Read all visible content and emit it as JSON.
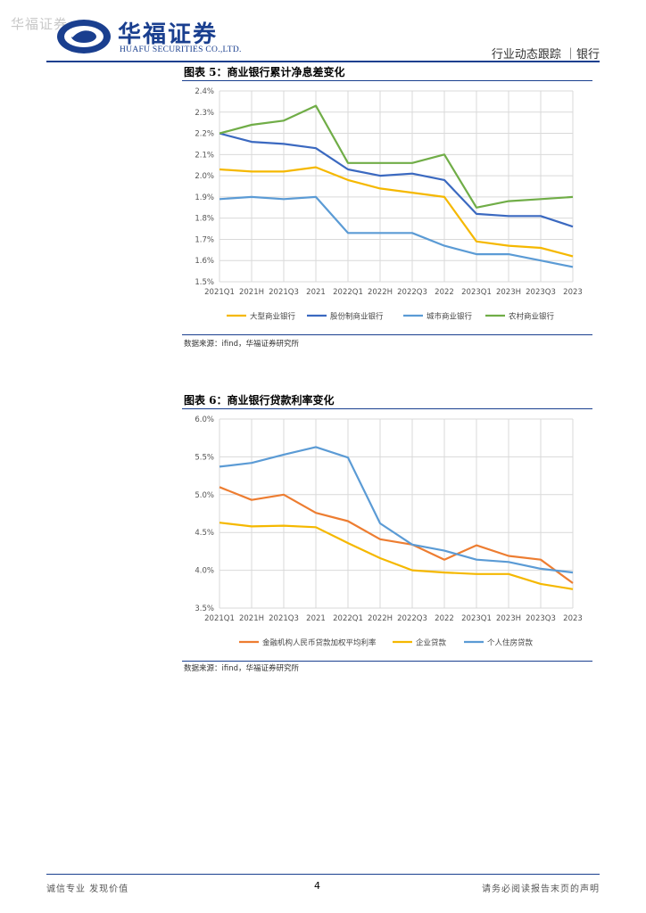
{
  "header": {
    "watermark": "华福证券",
    "logo_cn": "华福证券",
    "logo_en": "HUAFU SECURITIES CO.,LTD.",
    "section": "行业动态跟踪 ｜银行"
  },
  "figures": [
    {
      "title": "图表 5：商业银行累计净息差变化",
      "source": "数据来源：ifind，华福证券研究所"
    },
    {
      "title": "图表 6：商业银行贷款利率变化",
      "source": "数据来源：ifind，华福证券研究所"
    }
  ],
  "chart_data": [
    {
      "type": "line",
      "title": "商业银行累计净息差变化",
      "categories": [
        "2021Q1",
        "2021H",
        "2021Q3",
        "2021",
        "2022Q1",
        "2022H",
        "2022Q3",
        "2022",
        "2023Q1",
        "2023H",
        "2023Q3",
        "2023"
      ],
      "y_ticks": [
        "1.5%",
        "1.6%",
        "1.7%",
        "1.8%",
        "1.9%",
        "2.0%",
        "2.1%",
        "2.2%",
        "2.3%",
        "2.4%"
      ],
      "ylim": [
        1.5,
        2.4
      ],
      "legend_position": "bottom",
      "series": [
        {
          "name": "大型商业银行",
          "color": "#f5b800",
          "values": [
            2.03,
            2.02,
            2.02,
            2.04,
            1.98,
            1.94,
            1.92,
            1.9,
            1.69,
            1.67,
            1.66,
            1.62
          ]
        },
        {
          "name": "股份制商业银行",
          "color": "#3b69c0",
          "values": [
            2.2,
            2.16,
            2.15,
            2.13,
            2.03,
            2.0,
            2.01,
            1.98,
            1.82,
            1.81,
            1.81,
            1.76
          ]
        },
        {
          "name": "城市商业银行",
          "color": "#5b9bd5",
          "values": [
            1.89,
            1.9,
            1.89,
            1.9,
            1.73,
            1.73,
            1.73,
            1.67,
            1.63,
            1.63,
            1.6,
            1.57
          ]
        },
        {
          "name": "农村商业银行",
          "color": "#70ad47",
          "values": [
            2.2,
            2.24,
            2.26,
            2.33,
            2.06,
            2.06,
            2.06,
            2.1,
            1.85,
            1.88,
            1.89,
            1.9
          ]
        }
      ]
    },
    {
      "type": "line",
      "title": "商业银行贷款利率变化",
      "categories": [
        "2021Q1",
        "2021H",
        "2021Q3",
        "2021",
        "2022Q1",
        "2022H",
        "2022Q3",
        "2022",
        "2023Q1",
        "2023H",
        "2023Q3",
        "2023"
      ],
      "y_ticks": [
        "3.5%",
        "4.0%",
        "4.5%",
        "5.0%",
        "5.5%",
        "6.0%"
      ],
      "ylim": [
        3.5,
        6.0
      ],
      "legend_position": "bottom",
      "series": [
        {
          "name": "金融机构人民币贷款加权平均利率",
          "color": "#ed7d31",
          "values": [
            5.1,
            4.93,
            5.0,
            4.76,
            4.65,
            4.41,
            4.34,
            4.14,
            4.33,
            4.19,
            4.14,
            3.83
          ]
        },
        {
          "name": "企业贷款",
          "color": "#f5b800",
          "values": [
            4.63,
            4.58,
            4.59,
            4.57,
            4.36,
            4.16,
            4.0,
            3.97,
            3.95,
            3.95,
            3.82,
            3.75
          ]
        },
        {
          "name": "个人住房贷款",
          "color": "#5b9bd5",
          "values": [
            5.37,
            5.42,
            5.53,
            5.63,
            5.49,
            4.62,
            4.34,
            4.26,
            4.14,
            4.11,
            4.02,
            3.97
          ]
        }
      ]
    }
  ],
  "footer": {
    "left": "诚信专业  发现价值",
    "page": "4",
    "right": "请务必阅读报告末页的声明"
  }
}
